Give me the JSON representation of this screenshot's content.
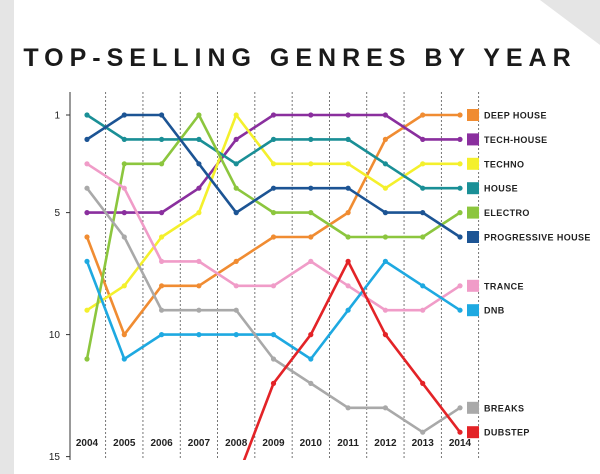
{
  "chart_data": {
    "type": "line",
    "title": "TOP-SELLING GENRES BY YEAR",
    "xlabel": "",
    "ylabel": "",
    "x": [
      "2004",
      "2005",
      "2006",
      "2007",
      "2008",
      "2009",
      "2010",
      "2011",
      "2012",
      "2013",
      "2014"
    ],
    "y_ticks": [
      1,
      5,
      10,
      15
    ],
    "ylim": [
      15,
      1
    ],
    "y_inverted": true,
    "grid": "vertical dashed",
    "legend": "right",
    "series": [
      {
        "name": "DEEP HOUSE",
        "color": "#f08c32",
        "values": [
          6,
          10,
          8,
          8,
          7,
          6,
          6,
          5,
          2,
          1,
          1
        ]
      },
      {
        "name": "TECH-HOUSE",
        "color": "#8a2f9e",
        "values": [
          5,
          5,
          5,
          4,
          2,
          1,
          1,
          1,
          1,
          2,
          2
        ]
      },
      {
        "name": "TECHNO",
        "color": "#f4f02c",
        "values": [
          9,
          8,
          6,
          5,
          1,
          3,
          3,
          3,
          4,
          3,
          3
        ]
      },
      {
        "name": "HOUSE",
        "color": "#1a8f96",
        "values": [
          1,
          2,
          2,
          2,
          3,
          2,
          2,
          2,
          3,
          4,
          4
        ]
      },
      {
        "name": "ELECTRO",
        "color": "#8cc63e",
        "values": [
          11,
          3,
          3,
          1,
          4,
          5,
          5,
          6,
          6,
          6,
          5
        ]
      },
      {
        "name": "PROGRESSIVE HOUSE",
        "color": "#1c5494",
        "values": [
          2,
          1,
          1,
          3,
          5,
          4,
          4,
          4,
          5,
          5,
          6
        ]
      },
      {
        "name": "TRANCE",
        "color": "#f09cc8",
        "values": [
          3,
          4,
          7,
          7,
          8,
          8,
          7,
          8,
          9,
          9,
          8
        ]
      },
      {
        "name": "DNB",
        "color": "#1ea9e1",
        "values": [
          7,
          11,
          10,
          10,
          10,
          10,
          11,
          9,
          7,
          8,
          9
        ]
      },
      {
        "name": "BREAKS",
        "color": "#a9a9a9",
        "values": [
          4,
          6,
          9,
          9,
          9,
          11,
          12,
          13,
          13,
          14,
          13
        ]
      },
      {
        "name": "DUBSTEP",
        "color": "#e32327",
        "values": [
          null,
          null,
          null,
          null,
          16,
          12,
          10,
          7,
          10,
          12,
          14
        ]
      }
    ]
  }
}
